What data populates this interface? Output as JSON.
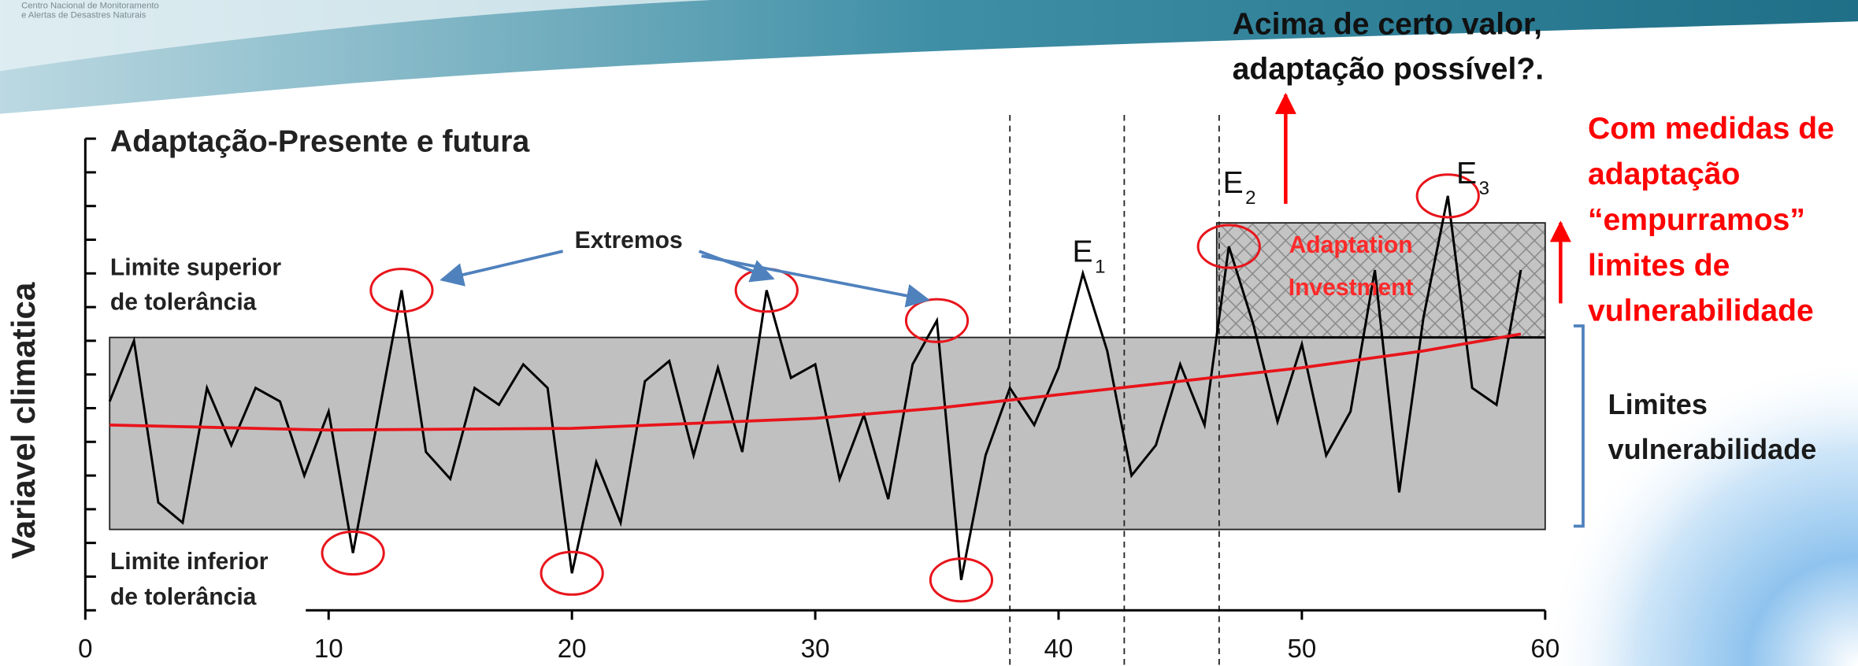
{
  "header": {
    "lines": [
      "Centro Nacional de Monitoramento",
      "e Alertas de Desastres Naturais"
    ]
  },
  "chart_data": {
    "type": "line",
    "title": "Adaptação-Presente e futura",
    "y_label": "Variavel climatica",
    "xlim": [
      0,
      60
    ],
    "xticks": [
      0,
      10,
      20,
      30,
      40,
      50,
      60
    ],
    "ylim": [
      0,
      14
    ],
    "yticks": [
      0,
      1,
      2,
      3,
      4,
      5,
      6,
      7,
      8,
      9,
      10,
      11,
      12,
      13,
      14
    ],
    "series": [
      {
        "color": "#000000",
        "x": [
          1,
          2,
          3,
          4,
          5,
          6,
          7,
          8,
          9,
          10,
          11,
          12,
          13,
          14,
          15,
          16,
          17,
          18,
          19,
          20,
          21,
          22,
          23,
          24,
          25,
          26,
          27,
          28,
          29,
          30,
          31,
          32,
          33,
          34,
          35,
          36,
          37,
          38,
          39,
          40,
          41,
          42,
          43,
          44,
          45,
          46,
          47,
          48,
          49,
          50,
          51,
          52,
          53,
          54,
          55,
          56,
          57,
          58,
          59
        ],
        "values": [
          6.2,
          8.0,
          3.2,
          2.6,
          6.6,
          4.9,
          6.6,
          6.2,
          4.0,
          5.9,
          1.7,
          5.6,
          9.5,
          4.7,
          3.9,
          6.6,
          6.1,
          7.3,
          6.6,
          1.1,
          4.4,
          2.6,
          6.8,
          7.4,
          4.6,
          7.2,
          4.7,
          9.5,
          6.9,
          7.3,
          3.9,
          5.8,
          3.3,
          7.3,
          8.6,
          0.9,
          4.6,
          6.6,
          5.5,
          7.2,
          10.0,
          7.7,
          4.0,
          4.9,
          7.3,
          5.5,
          10.8,
          8.5,
          5.6,
          7.9,
          4.6,
          5.9,
          10.1,
          3.5,
          8.7,
          12.3,
          6.6,
          6.1,
          10.1
        ]
      },
      {
        "color": "#e8141b",
        "x": [
          1,
          10,
          20,
          30,
          35,
          40,
          45,
          50,
          55,
          59
        ],
        "values": [
          5.5,
          5.35,
          5.4,
          5.7,
          6.0,
          6.4,
          6.8,
          7.2,
          7.7,
          8.2
        ]
      }
    ],
    "tolerance_band": {
      "xlim": [
        1,
        60
      ],
      "ylim": [
        2.4,
        8.1
      ],
      "color": "#c0c0c0"
    },
    "adaptation_box": {
      "xlim": [
        46.5,
        60
      ],
      "ylim": [
        8.1,
        11.5
      ],
      "label": [
        "Adaptation",
        "Investment"
      ]
    },
    "vlines": [
      38,
      42.7,
      46.6
    ],
    "extremes_x": [
      11,
      13,
      20,
      28,
      35,
      36,
      47,
      56
    ],
    "event_labels": [
      {
        "text": "E",
        "sub": "1"
      },
      {
        "text": "E",
        "sub": "2"
      },
      {
        "text": "E",
        "sub": "3"
      }
    ],
    "upper_label": [
      "Limite superior",
      "de tolerância"
    ],
    "lower_label": [
      "Limite inferior",
      "de tolerância"
    ],
    "extremes_label": "Extremos"
  },
  "annotations": {
    "question": [
      "Acima de certo valor,",
      "adaptação possível?."
    ],
    "push": [
      "Com medidas de",
      "adaptação",
      "“empurramos”",
      "limites  de",
      "vulnerabilidade"
    ],
    "limits": [
      "Limites",
      "vulnerabilidade"
    ]
  }
}
